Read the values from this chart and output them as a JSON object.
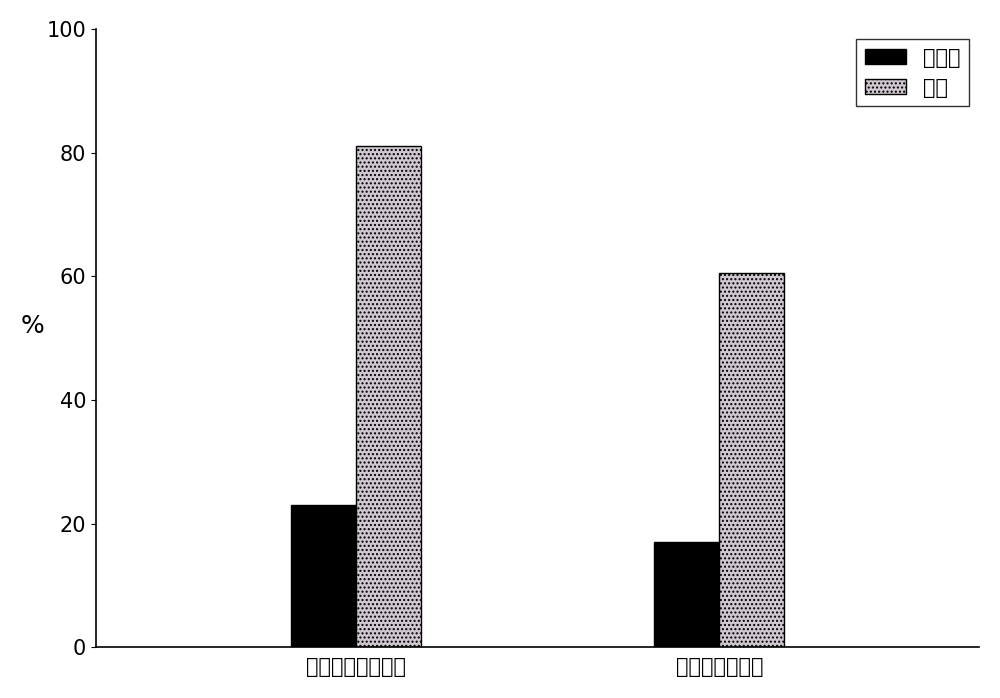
{
  "categories": [
    "本发明低温压榨法",
    "常规低温压榨法"
  ],
  "series": [
    {
      "label": "出油率",
      "values": [
        23.0,
        17.0
      ],
      "color": "#000000",
      "hatch": null
    },
    {
      "label": "得率",
      "values": [
        81.0,
        60.5
      ],
      "color": "#d0c8d0",
      "hatch": "...."
    }
  ],
  "ylabel": "%",
  "ylim": [
    0,
    100
  ],
  "yticks": [
    0,
    20,
    40,
    60,
    80,
    100
  ],
  "bar_width": 0.25,
  "legend_loc": "upper right",
  "legend_fontsize": 15,
  "tick_fontsize": 15,
  "ylabel_fontsize": 18,
  "xlabel_fontsize": 15,
  "background_color": "#ffffff",
  "edge_color": "#000000"
}
